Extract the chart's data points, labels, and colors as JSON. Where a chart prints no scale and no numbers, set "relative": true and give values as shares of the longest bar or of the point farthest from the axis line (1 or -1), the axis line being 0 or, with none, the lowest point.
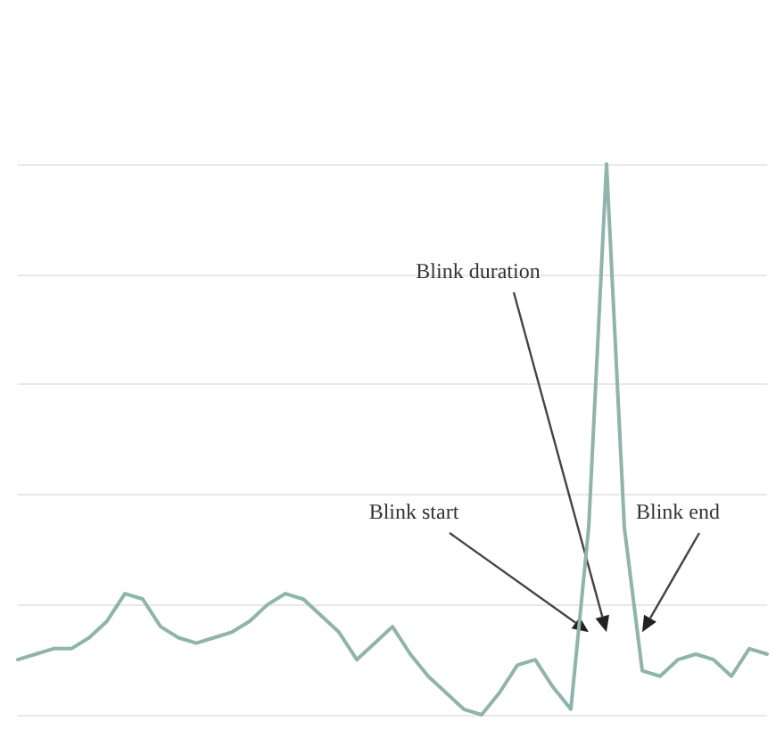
{
  "chart_data": {
    "type": "line",
    "relative": true,
    "grid": "y",
    "marker": "none",
    "line_style": "solid",
    "categories": [
      null,
      null,
      null,
      null,
      null,
      null,
      null,
      null,
      null,
      null,
      null,
      null,
      null,
      null,
      null,
      null,
      null,
      null,
      null,
      null,
      null,
      null,
      null,
      null,
      null,
      null,
      null,
      null,
      null,
      null,
      null,
      null,
      null,
      null,
      null,
      null,
      null,
      null,
      null,
      null,
      null,
      null,
      null
    ],
    "series": [
      {
        "color": "#8fb3ad",
        "values": [
          0.1,
          0.11,
          0.12,
          0.12,
          0.14,
          0.17,
          0.22,
          0.21,
          0.16,
          0.14,
          0.13,
          0.14,
          0.15,
          0.17,
          0.2,
          0.22,
          0.21,
          0.18,
          0.15,
          0.1,
          0.13,
          0.16,
          0.11,
          0.07,
          0.04,
          0.01,
          0,
          0.04,
          0.09,
          0.1,
          0.05,
          0.01,
          0.34,
          1,
          0.34,
          0.08,
          0.07,
          0.1,
          0.11,
          0.1,
          0.07,
          0.12,
          0.11
        ]
      }
    ],
    "annotations": [
      "Blink duration",
      "Blink start",
      "Blink end"
    ]
  }
}
